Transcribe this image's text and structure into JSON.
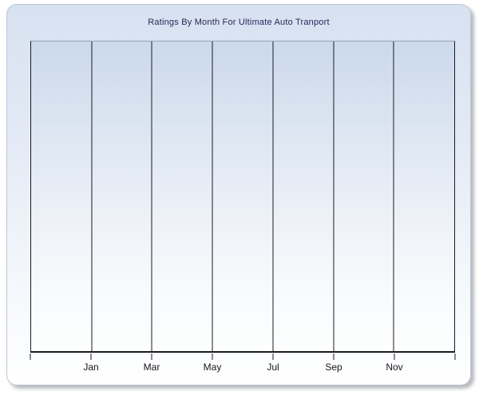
{
  "chart": {
    "title": "Ratings By Month For Ultimate Auto Tranport"
  },
  "chart_data": {
    "type": "line",
    "title": "Ratings By Month For Ultimate Auto Tranport",
    "xlabel": "",
    "ylabel": "",
    "x_tick_labels": [
      "Jan",
      "Mar",
      "May",
      "Jul",
      "Sep",
      "Nov"
    ],
    "x_gridline_count": 8,
    "series": [],
    "y_tick_labels": [],
    "grid": "vertical-only",
    "legend": "none"
  },
  "colors": {
    "container_bg_top": "#d7e1f0",
    "container_bg_bottom": "#ffffff",
    "plot_bg_top": "#cbd9ec",
    "plot_bg_bottom": "#fdfefe",
    "grid_line": "#1b1b22",
    "plot_top_border": "#9aa3b2",
    "title_text": "#26265a",
    "axis_text": "#16161e",
    "panel_border": "#bfc7d3"
  }
}
